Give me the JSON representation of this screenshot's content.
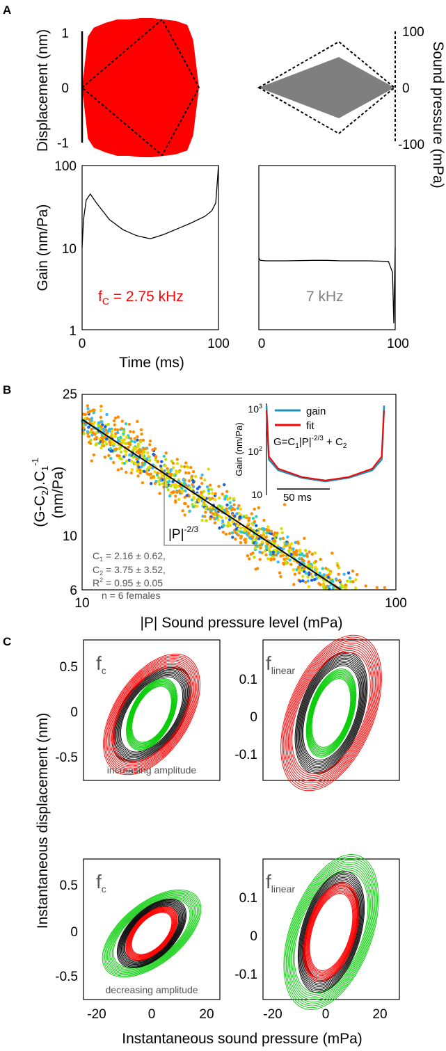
{
  "panels": {
    "A": "A",
    "B": "B",
    "C": "C"
  },
  "panel_a": {
    "top_left": {
      "ylabel": "Displacement (nm)",
      "yticks": [
        "1",
        "0",
        "-1"
      ]
    },
    "top_right": {
      "ylabel": "Sound pressure (mPa)",
      "yticks": [
        "100",
        "0",
        "-100"
      ]
    },
    "bottom": {
      "ylabel": "Gain (nm/Pa)",
      "yticks": [
        "100",
        "10",
        "1"
      ],
      "xticks": [
        "0",
        "100"
      ],
      "xlabel": "Time (ms)",
      "left_label_main": "f",
      "left_label_sub": "C",
      "left_label_rest": " = 2.75 kHz",
      "right_label": "7 kHz"
    }
  },
  "panel_b": {
    "ylabel_line1": "(G-C",
    "ylabel_line1_sub2": "2",
    "ylabel_line1_mid": ").C",
    "ylabel_line1_sub1": "1",
    "ylabel_line1_sup": "-1",
    "ylabel_line2": "(nm/Pa)",
    "xlabel": "|P| Sound pressure level (mPa)",
    "yticks": [
      "25",
      "10",
      "6"
    ],
    "xticks": [
      "10",
      "100"
    ],
    "slope_label": "|P|",
    "slope_sup": "-2/3",
    "stats": [
      {
        "pre": "C",
        "sub": "1",
        "post": " = 2.16 ± 0.62,"
      },
      {
        "pre": "C",
        "sub": "2",
        "post": " = 3.75 ± 3.52,"
      },
      {
        "pre": "R",
        "sup": "2",
        "post": " = 0.95 ± 0.05"
      },
      {
        "pre": "n = 6 females"
      }
    ],
    "inset": {
      "ylabel": "Gain (nm/Pa)",
      "yticks_base": [
        "10",
        "10",
        "10"
      ],
      "yticks_exp": [
        "3",
        "2",
        ""
      ],
      "legend": [
        "gain",
        "fit"
      ],
      "formula_pre": "G=C",
      "formula_sub": "1",
      "formula_mid": "|P|",
      "formula_sup": "-2/3",
      "formula_post": " + C",
      "formula_sub2": "2",
      "scale_label": "50 ms"
    }
  },
  "panel_c": {
    "ylabel": "Instantaneous displacement (nm)",
    "xlabel": "Instantaneous sound pressure (mPa)",
    "left_yticks": [
      "0.5",
      "0",
      "-0.5"
    ],
    "right_yticks": [
      "0.1",
      "0",
      "-0.1"
    ],
    "xticks": [
      "-20",
      "0",
      "20"
    ],
    "fc_main": "f",
    "fc_sub": "c",
    "flin_main": "f",
    "flin_sub": "linear",
    "top_note": "increasing amplitude",
    "bottom_note": "decreasing amplitude"
  },
  "colors": {
    "red": "#ff0000",
    "green": "#00cc00",
    "gray": "#7f7f7f",
    "blue_gain": "#1f8fb4",
    "orange": "#ff8c00"
  },
  "chart_data": [
    {
      "type": "area",
      "name": "A-top-left",
      "ylabel": "Displacement (nm)",
      "ylim": [
        -1,
        1
      ],
      "x": [
        0,
        5,
        10,
        20,
        30,
        40,
        50,
        60,
        70,
        80,
        90,
        95,
        100
      ],
      "envelope": [
        0,
        0.75,
        0.88,
        0.95,
        1.0,
        1.0,
        1.02,
        1.02,
        1.0,
        0.98,
        0.92,
        0.7,
        0
      ],
      "stimulus_scaled": [
        0,
        0.09,
        0.18,
        0.36,
        0.54,
        0.72,
        0.9,
        0.72,
        0.54,
        0.36,
        0.18,
        0.09,
        0
      ]
    },
    {
      "type": "area",
      "name": "A-top-right",
      "ylabel": "Sound pressure (mPa)",
      "ylim": [
        -100,
        100
      ],
      "x": [
        0,
        50,
        100
      ],
      "displacement_envelope": [
        0,
        60,
        0
      ],
      "pressure_envelope": [
        0,
        85,
        0
      ]
    },
    {
      "type": "line",
      "name": "A-bottom-left",
      "ylabel": "Gain (nm/Pa)",
      "xlabel": "Time (ms)",
      "yscale": "log",
      "ylim": [
        1,
        100
      ],
      "xlim": [
        0,
        100
      ],
      "x": [
        0,
        1,
        3,
        6,
        10,
        20,
        30,
        40,
        50,
        60,
        70,
        80,
        90,
        95,
        98,
        100
      ],
      "values": [
        10,
        22,
        38,
        45,
        36,
        22,
        16.5,
        14,
        12.8,
        14.5,
        17,
        20,
        24,
        28,
        35,
        100
      ]
    },
    {
      "type": "line",
      "name": "A-bottom-right",
      "ylabel": "Gain (nm/Pa)",
      "xlabel": "Time (ms)",
      "yscale": "log",
      "ylim": [
        1,
        100
      ],
      "xlim": [
        0,
        100
      ],
      "x": [
        0,
        1,
        5,
        20,
        40,
        50,
        60,
        80,
        95,
        98,
        99,
        100
      ],
      "values": [
        7.5,
        7.0,
        6.9,
        6.9,
        7.0,
        7.0,
        6.9,
        6.9,
        6.8,
        5.0,
        1.2,
        10
      ]
    },
    {
      "type": "scatter",
      "name": "B",
      "xlabel": "|P| Sound pressure level (mPa)",
      "xscale": "log",
      "yscale": "log",
      "xlim": [
        10,
        100
      ],
      "ylim": [
        6,
        25
      ],
      "fit_line": {
        "x": [
          10,
          68
        ],
        "y": [
          22,
          6
        ]
      }
    },
    {
      "type": "line",
      "name": "B-inset",
      "ylabel": "Gain (nm/Pa)",
      "yscale": "log",
      "ylim": [
        10,
        1000
      ],
      "series": [
        {
          "name": "gain",
          "x": [
            0,
            2,
            10,
            30,
            50,
            70,
            90,
            98,
            100
          ],
          "values": [
            900,
            60,
            35,
            24,
            20,
            24,
            35,
            60,
            900
          ]
        },
        {
          "name": "fit",
          "x": [
            0,
            2,
            10,
            30,
            50,
            70,
            90,
            98,
            100
          ],
          "values": [
            700,
            70,
            38,
            25,
            21,
            25,
            38,
            70,
            700
          ]
        }
      ]
    },
    {
      "type": "scatter",
      "name": "C-loops",
      "xlim": [
        -25,
        25
      ],
      "panels": [
        {
          "pos": "top-left",
          "ylim": [
            -0.7,
            0.7
          ],
          "note": "increasing amplitude",
          "loops": [
            {
              "color": "green",
              "amp_x": 9,
              "amp_y": 0.3
            },
            {
              "color": "black",
              "amp_x": 14,
              "amp_y": 0.4
            },
            {
              "color": "red",
              "amp_x": 17,
              "amp_y": 0.5
            }
          ]
        },
        {
          "pos": "top-right",
          "ylim": [
            -0.15,
            0.15
          ],
          "loops": [
            {
              "color": "green",
              "amp_x": 9,
              "amp_y": 0.08
            },
            {
              "color": "black",
              "amp_x": 13,
              "amp_y": 0.11
            },
            {
              "color": "red",
              "amp_x": 18,
              "amp_y": 0.14
            }
          ]
        },
        {
          "pos": "bottom-left",
          "ylim": [
            -0.7,
            0.7
          ],
          "note": "decreasing amplitude",
          "loops": [
            {
              "color": "green",
              "amp_x": 17,
              "amp_y": 0.35
            },
            {
              "color": "black",
              "amp_x": 12,
              "amp_y": 0.28
            },
            {
              "color": "red",
              "amp_x": 9,
              "amp_y": 0.22
            }
          ]
        },
        {
          "pos": "bottom-right",
          "ylim": [
            -0.15,
            0.15
          ],
          "loops": [
            {
              "color": "green",
              "amp_x": 17,
              "amp_y": 0.14
            },
            {
              "color": "black",
              "amp_x": 12,
              "amp_y": 0.11
            },
            {
              "color": "red",
              "amp_x": 10,
              "amp_y": 0.09
            }
          ]
        }
      ]
    }
  ]
}
